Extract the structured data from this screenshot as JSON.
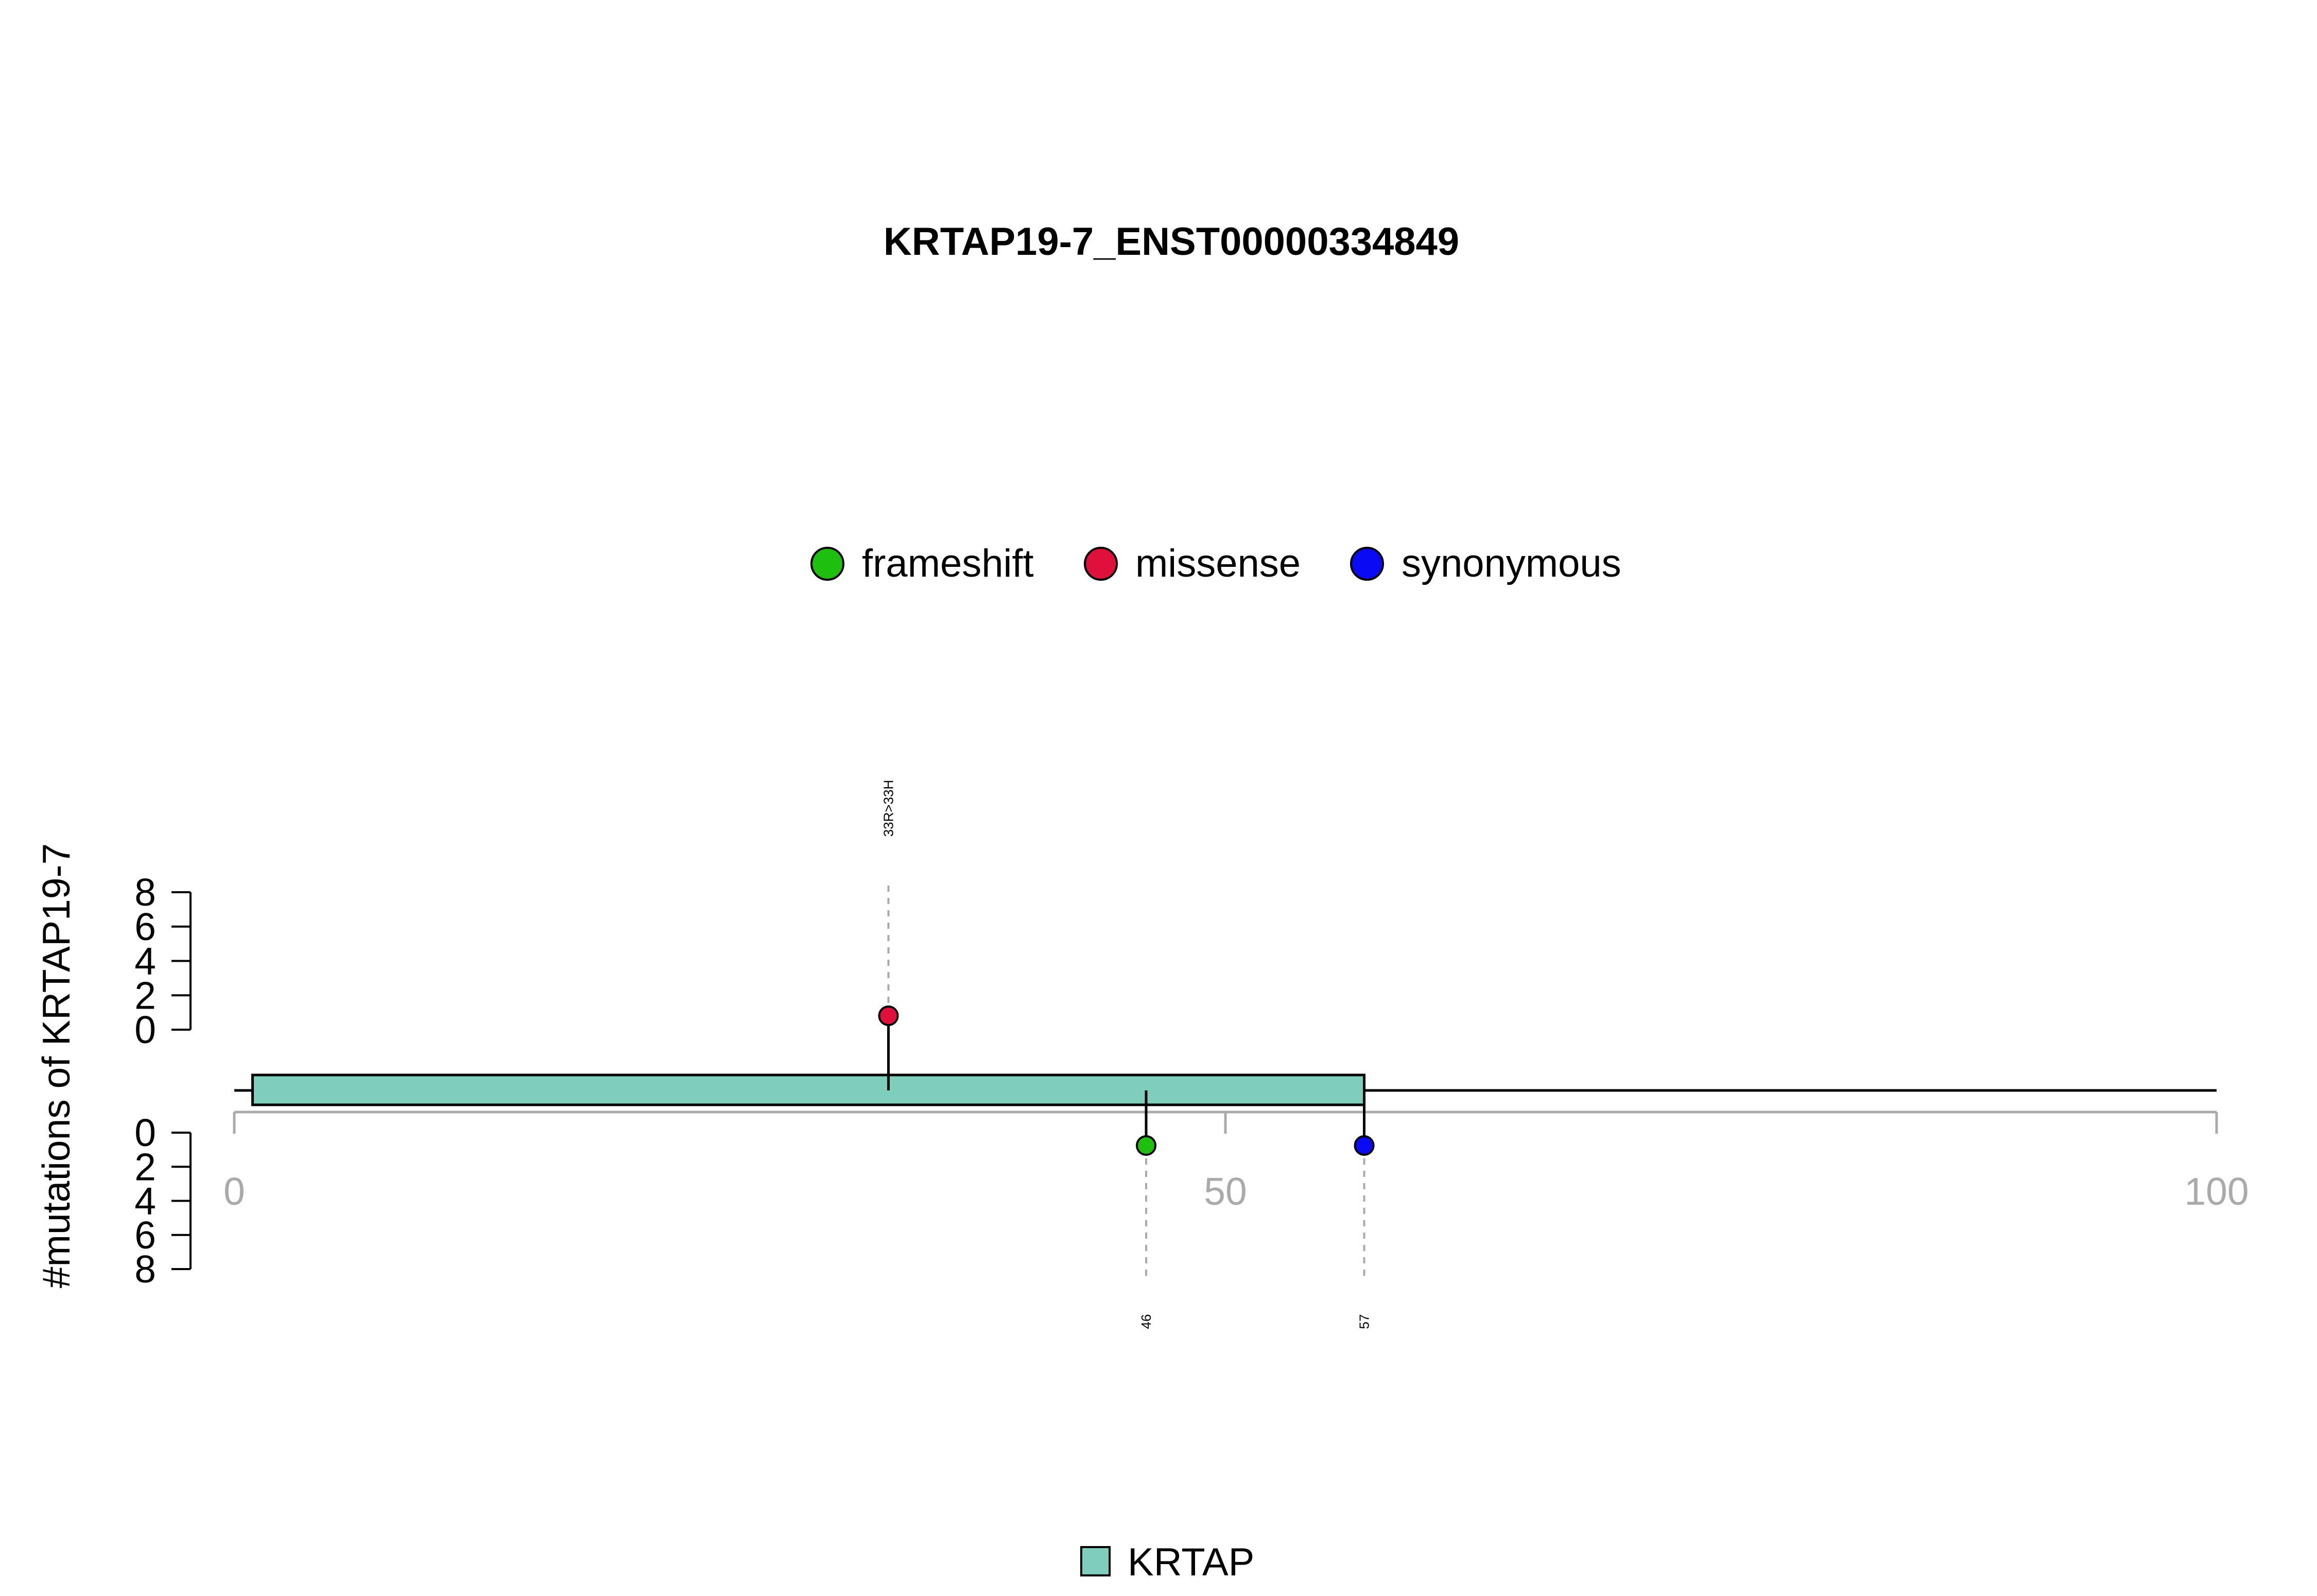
{
  "chart_data": {
    "type": "lollipop",
    "title": "KRTAP19-7_ENST00000334849",
    "ylabel": "#mutations of KRTAP19-7",
    "xlim": [
      0,
      100
    ],
    "x_ticks": [
      "0",
      "50",
      "100"
    ],
    "y_ticks_up": [
      "0",
      "2",
      "4",
      "6",
      "8"
    ],
    "y_ticks_down": [
      "0",
      "2",
      "4",
      "6",
      "8"
    ],
    "ylim": [
      0,
      8
    ],
    "protein_length": 100,
    "legend_mutations": [
      {
        "label": "frameshift",
        "color": "#1fbf10"
      },
      {
        "label": "missense",
        "color": "#e0103c"
      },
      {
        "label": "synonymous",
        "color": "#0a0af5"
      }
    ],
    "domains": [
      {
        "name": "KRTAP",
        "start": 1,
        "end": 57,
        "color": "#7fcdbb"
      }
    ],
    "legend_domains": [
      {
        "label": "KRTAP",
        "color": "#7fcdbb"
      }
    ],
    "mutations": [
      {
        "position": 33,
        "count": 1,
        "type": "missense",
        "side": "up",
        "label": "33R>33H",
        "color": "#e0103c"
      },
      {
        "position": 46,
        "count": 1,
        "type": "frameshift",
        "side": "down",
        "label": "46",
        "color": "#1fbf10"
      },
      {
        "position": 57,
        "count": 1,
        "type": "synonymous",
        "side": "down",
        "label": "57",
        "color": "#0a0af5"
      }
    ]
  }
}
